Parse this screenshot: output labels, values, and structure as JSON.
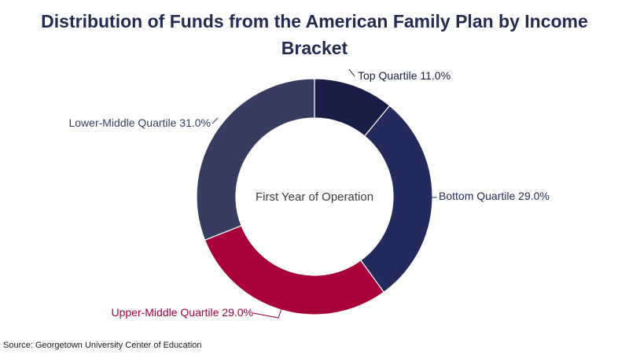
{
  "chart_data": {
    "type": "pie",
    "donut": true,
    "title_lines": [
      "Distribution of Funds from the American Family Plan by Income",
      "Bracket"
    ],
    "center_label": "First Year of Operation",
    "unit": "%",
    "start_angle_deg": 0,
    "direction": "clockwise",
    "slices": [
      {
        "label": "Top Quartile",
        "value": 11.0,
        "value_text": "11.0%",
        "color": "#181e45",
        "label_color": "#181e45"
      },
      {
        "label": "Bottom Quartile",
        "value": 29.0,
        "value_text": "29.0%",
        "color": "#232b5c",
        "label_color": "#232b5c"
      },
      {
        "label": "Upper-Middle Quartile",
        "value": 29.0,
        "value_text": "29.0%",
        "color": "#a8003a",
        "label_color": "#a8003a"
      },
      {
        "label": "Lower-Middle Quartile",
        "value": 31.0,
        "value_text": "31.0%",
        "color": "#363d60",
        "label_color": "#363d60"
      }
    ],
    "legend": "none",
    "source": "Source: Georgetown University Center of Education"
  }
}
